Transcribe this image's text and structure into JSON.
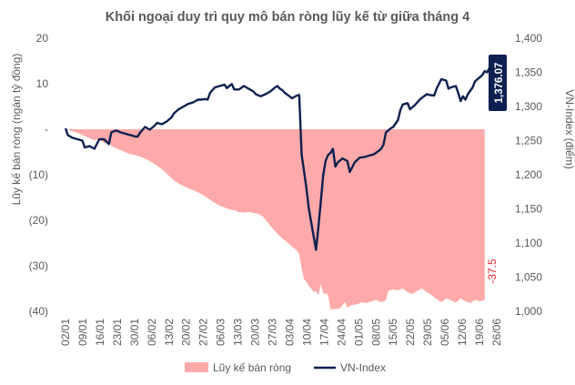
{
  "chart_data": {
    "type": "area",
    "title": "Khối ngoại duy trì quy mô bán ròng lũy kế từ giữa tháng 4",
    "ylabel_left": "Lũy kế bán ròng (ngàn tỷ đồng)",
    "ylabel_right": "VN-Index (điểm)",
    "left_ticks": [
      "20",
      "10",
      "-",
      "(10)",
      "(20)",
      "(30)",
      "(40)"
    ],
    "left_tick_values": [
      20,
      10,
      0,
      -10,
      -20,
      -30,
      -40
    ],
    "ylim_left": [
      -40,
      20
    ],
    "right_ticks": [
      "1,400",
      "1,350",
      "1,300",
      "1,250",
      "1,200",
      "1,150",
      "1,100",
      "1,050",
      "1,000"
    ],
    "right_tick_values": [
      1400,
      1350,
      1300,
      1250,
      1200,
      1150,
      1100,
      1050,
      1000
    ],
    "ylim_right": [
      1000,
      1400
    ],
    "x_ticks": [
      "02/01",
      "09/01",
      "16/01",
      "23/01",
      "30/01",
      "06/02",
      "13/02",
      "20/02",
      "27/02",
      "06/03",
      "13/03",
      "20/03",
      "27/03",
      "03/04",
      "10/04",
      "17/04",
      "24/04",
      "01/05",
      "08/05",
      "15/05",
      "22/05",
      "29/05",
      "05/06",
      "12/06",
      "19/06",
      "26/06"
    ],
    "legend": [
      "Lũy kế bán ròng",
      "VN-Index"
    ],
    "legend_position": "bottom",
    "colors": {
      "net_sell": "#ffaaaa",
      "vnindex": "#0d1f4f",
      "last_label_bg": "#0d1f4f",
      "net_label": "#e8222b"
    },
    "annotations": {
      "vnindex_last": "1,376.07",
      "net_sell_last": "-37.5"
    },
    "series": [
      {
        "name": "Lũy kế bán ròng",
        "axis": "left",
        "points": [
          [
            0,
            0
          ],
          [
            2,
            -0.3
          ],
          [
            5,
            -0.8
          ],
          [
            8,
            -1.5
          ],
          [
            10,
            -2.0
          ],
          [
            12,
            -2.4
          ],
          [
            14,
            -2.2
          ],
          [
            16,
            -3.0
          ],
          [
            18,
            -3.2
          ],
          [
            20,
            -4.0
          ],
          [
            23,
            -4.6
          ],
          [
            26,
            -5.3
          ],
          [
            29,
            -5.7
          ],
          [
            32,
            -6.2
          ],
          [
            35,
            -7.0
          ],
          [
            38,
            -8.0
          ],
          [
            41,
            -9.2
          ],
          [
            44,
            -10.8
          ],
          [
            46,
            -11.6
          ],
          [
            48,
            -12.2
          ],
          [
            51,
            -13.0
          ],
          [
            54,
            -13.6
          ],
          [
            57,
            -14.4
          ],
          [
            60,
            -15.5
          ],
          [
            62,
            -16.2
          ],
          [
            64,
            -16.8
          ],
          [
            66,
            -17.2
          ],
          [
            68,
            -17.6
          ],
          [
            70,
            -17.8
          ],
          [
            72,
            -18.2
          ],
          [
            74,
            -18.3
          ],
          [
            76,
            -18.2
          ],
          [
            78,
            -18.4
          ],
          [
            80,
            -18.6
          ],
          [
            82,
            -19.2
          ],
          [
            84,
            -20.5
          ],
          [
            86,
            -21.8
          ],
          [
            88,
            -23.0
          ],
          [
            90,
            -24.0
          ],
          [
            92,
            -24.8
          ],
          [
            94,
            -25.8
          ],
          [
            96,
            -26.6
          ],
          [
            97,
            -27.4
          ],
          [
            98,
            -30.5
          ],
          [
            99,
            -33.0
          ],
          [
            100,
            -33.5
          ],
          [
            101,
            -34.5
          ],
          [
            102,
            -35.0
          ],
          [
            103,
            -35.8
          ],
          [
            104,
            -35.6
          ],
          [
            105,
            -36.5
          ],
          [
            106,
            -34.0
          ],
          [
            107,
            -36.2
          ],
          [
            108,
            -36.0
          ],
          [
            109,
            -36.5
          ],
          [
            110,
            -39.6
          ],
          [
            112,
            -39.5
          ],
          [
            114,
            -39.3
          ],
          [
            116,
            -38.0
          ],
          [
            117,
            -39.2
          ],
          [
            119,
            -38.6
          ],
          [
            121,
            -38.5
          ],
          [
            123,
            -38.0
          ],
          [
            125,
            -38.2
          ],
          [
            127,
            -37.8
          ],
          [
            129,
            -37.5
          ],
          [
            131,
            -38.0
          ],
          [
            133,
            -37.6
          ],
          [
            134,
            -35.5
          ],
          [
            136,
            -35.2
          ],
          [
            138,
            -35.4
          ],
          [
            140,
            -35.0
          ],
          [
            142,
            -35.8
          ],
          [
            144,
            -36.2
          ],
          [
            146,
            -35.5
          ],
          [
            148,
            -35.0
          ],
          [
            150,
            -35.8
          ],
          [
            152,
            -36.5
          ],
          [
            154,
            -37.3
          ],
          [
            156,
            -38.0
          ],
          [
            158,
            -37.2
          ],
          [
            160,
            -37.6
          ],
          [
            162,
            -38.1
          ],
          [
            164,
            -37.2
          ],
          [
            166,
            -37.8
          ],
          [
            168,
            -38.2
          ],
          [
            170,
            -37.5
          ],
          [
            172,
            -37.8
          ],
          [
            174,
            -37.5
          ]
        ]
      },
      {
        "name": "VN-Index",
        "axis": "right",
        "points": [
          [
            0,
            1268
          ],
          [
            1,
            1258
          ],
          [
            3,
            1254
          ],
          [
            5,
            1252
          ],
          [
            7,
            1250
          ],
          [
            8,
            1240
          ],
          [
            10,
            1242
          ],
          [
            12,
            1238
          ],
          [
            14,
            1252
          ],
          [
            16,
            1252
          ],
          [
            18,
            1245
          ],
          [
            19,
            1262
          ],
          [
            21,
            1265
          ],
          [
            23,
            1262
          ],
          [
            25,
            1260
          ],
          [
            27,
            1258
          ],
          [
            29,
            1256
          ],
          [
            30,
            1256
          ],
          [
            31,
            1262
          ],
          [
            33,
            1270
          ],
          [
            35,
            1266
          ],
          [
            37,
            1272
          ],
          [
            38,
            1276
          ],
          [
            40,
            1274
          ],
          [
            42,
            1278
          ],
          [
            44,
            1284
          ],
          [
            45,
            1290
          ],
          [
            47,
            1296
          ],
          [
            49,
            1300
          ],
          [
            51,
            1304
          ],
          [
            52,
            1305
          ],
          [
            53,
            1306
          ],
          [
            55,
            1310
          ],
          [
            56,
            1310
          ],
          [
            58,
            1311
          ],
          [
            59,
            1310
          ],
          [
            60,
            1320
          ],
          [
            62,
            1328
          ],
          [
            64,
            1330
          ],
          [
            66,
            1332
          ],
          [
            67,
            1327
          ],
          [
            69,
            1333
          ],
          [
            70,
            1325
          ],
          [
            72,
            1325
          ],
          [
            74,
            1330
          ],
          [
            76,
            1326
          ],
          [
            78,
            1322
          ],
          [
            79,
            1318
          ],
          [
            81,
            1315
          ],
          [
            83,
            1318
          ],
          [
            85,
            1322
          ],
          [
            87,
            1328
          ],
          [
            88,
            1330
          ],
          [
            89,
            1326
          ],
          [
            90,
            1324
          ],
          [
            91,
            1320
          ],
          [
            93,
            1315
          ],
          [
            94,
            1312
          ],
          [
            96,
            1316
          ],
          [
            97,
            1317
          ],
          [
            98,
            1230
          ],
          [
            99,
            1205
          ],
          [
            100,
            1180
          ],
          [
            101,
            1150
          ],
          [
            102,
            1130
          ],
          [
            103,
            1110
          ],
          [
            104,
            1090
          ],
          [
            105,
            1124
          ],
          [
            106,
            1162
          ],
          [
            107,
            1200
          ],
          [
            108,
            1221
          ],
          [
            109,
            1229
          ],
          [
            110,
            1232
          ],
          [
            111,
            1238
          ],
          [
            112,
            1212
          ],
          [
            113,
            1218
          ],
          [
            115,
            1224
          ],
          [
            117,
            1220
          ],
          [
            118,
            1204
          ],
          [
            120,
            1218
          ],
          [
            122,
            1225
          ],
          [
            124,
            1226
          ],
          [
            126,
            1228
          ],
          [
            128,
            1230
          ],
          [
            130,
            1235
          ],
          [
            131,
            1238
          ],
          [
            132,
            1244
          ],
          [
            133,
            1262
          ],
          [
            135,
            1268
          ],
          [
            136,
            1270
          ],
          [
            138,
            1280
          ],
          [
            139,
            1295
          ],
          [
            140,
            1303
          ],
          [
            142,
            1305
          ],
          [
            143,
            1296
          ],
          [
            145,
            1302
          ],
          [
            147,
            1310
          ],
          [
            148,
            1313
          ],
          [
            150,
            1318
          ],
          [
            151,
            1317
          ],
          [
            153,
            1316
          ],
          [
            154,
            1326
          ],
          [
            156,
            1340
          ],
          [
            158,
            1338
          ],
          [
            159,
            1326
          ],
          [
            160,
            1328
          ],
          [
            162,
            1330
          ],
          [
            163,
            1320
          ],
          [
            164,
            1308
          ],
          [
            165,
            1315
          ],
          [
            166,
            1310
          ],
          [
            167,
            1318
          ],
          [
            169,
            1328
          ],
          [
            170,
            1337
          ],
          [
            171,
            1340
          ],
          [
            172,
            1343
          ],
          [
            173,
            1346
          ],
          [
            174,
            1352
          ],
          [
            175,
            1350
          ],
          [
            176,
            1357
          ],
          [
            177,
            1362
          ],
          [
            178,
            1363
          ],
          [
            179,
            1376
          ]
        ]
      }
    ]
  }
}
